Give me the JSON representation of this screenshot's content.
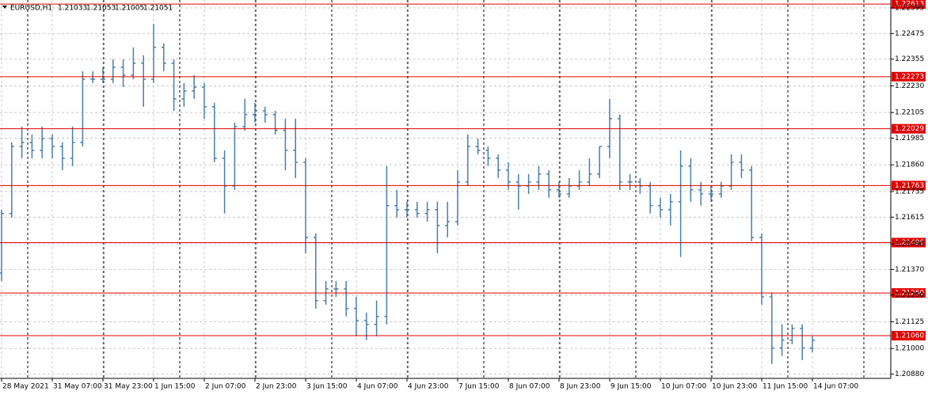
{
  "chart_data": {
    "type": "ohlc",
    "title": "EURUSD,H1",
    "info_values": [
      1.21033,
      1.21053,
      1.21005,
      1.21051
    ],
    "color": "#4a7ea8",
    "level_color": "#e00000",
    "grid": true,
    "ylim": [
      1.2086,
      1.22632
    ],
    "yticks": [
      1.22595,
      1.22475,
      1.22355,
      {
        "value": 1.2223,
        "label": "1.22230"
      },
      1.22105,
      1.21985,
      {
        "value": 1.2186,
        "label": "1.21860"
      },
      1.21735,
      1.21615,
      {
        "value": 1.2149,
        "label": "1.21490"
      },
      {
        "value": 1.2137,
        "label": "1.21370"
      },
      {
        "value": 1.2125,
        "label": "1.21250"
      },
      1.21125,
      {
        "value": 1.21,
        "label": "1.21000"
      },
      {
        "value": 1.2088,
        "label": "1.20880"
      }
    ],
    "levels": [
      1.22613,
      1.22273,
      1.22029,
      1.21763,
      1.21496,
      {
        "value": 1.2126,
        "label": "1.21260"
      },
      {
        "value": 1.2106,
        "label": "1.21060"
      }
    ],
    "categories": [
      "28 May 2021",
      null,
      null,
      null,
      null,
      "31 May 07:00",
      null,
      null,
      null,
      null,
      "31 May 23:00",
      null,
      null,
      null,
      null,
      "1 Jun 15:00",
      null,
      null,
      null,
      null,
      "2 Jun 07:00",
      null,
      null,
      null,
      null,
      "2 Jun 23:00",
      null,
      null,
      null,
      null,
      "3 Jun 15:00",
      null,
      null,
      null,
      null,
      "4 Jun 07:00",
      null,
      null,
      null,
      null,
      "4 Jun 23:00",
      null,
      null,
      null,
      null,
      "7 Jun 15:00",
      null,
      null,
      null,
      null,
      "8 Jun 07:00",
      null,
      null,
      null,
      null,
      "8 Jun 23:00",
      null,
      null,
      null,
      null,
      "9 Jun 15:00",
      null,
      null,
      null,
      null,
      "10 Jun 07:00",
      null,
      null,
      null,
      null,
      "10 Jun 23:00",
      null,
      null,
      null,
      null,
      "11 Jun 15:00",
      null,
      null,
      null,
      null,
      "14 Jun 07:00"
    ],
    "open": [
      1.21354,
      1.21632,
      1.21946,
      1.21965,
      1.21928,
      1.21983,
      1.21946,
      1.21891,
      1.21965,
      1.22261,
      1.22261,
      1.22261,
      1.22317,
      1.2228,
      1.22336,
      1.22261,
      1.2241,
      1.22336,
      1.22169,
      1.22206,
      1.22224,
      1.22132,
      1.21891,
      1.21761,
      1.22039,
      1.22095,
      1.22113,
      1.22095,
      1.22021,
      1.21928,
      1.21872,
      1.2152,
      1.21224,
      1.21279,
      1.21279,
      1.21187,
      1.21131,
      1.21113,
      1.2115,
      1.21669,
      1.2165,
      1.2165,
      1.21632,
      1.2165,
      1.21576,
      1.21594,
      1.2178,
      1.21946,
      1.21928,
      1.21891,
      1.21835,
      1.2178,
      1.21761,
      1.2178,
      1.21817,
      1.21743,
      1.21724,
      1.21761,
      1.2178,
      1.21817,
      1.21946,
      1.22076,
      1.2178,
      1.2178,
      1.21761,
      1.21669,
      1.2165,
      1.21687,
      1.21854,
      1.21743,
      1.21724,
      1.21724,
      1.21761,
      1.21872,
      1.21835,
      1.2152,
      1.21242,
      1.21002,
      1.21039,
      1.21094,
      1.21002
    ],
    "high": [
      1.2165,
      1.21965,
      1.22039,
      1.22002,
      1.22039,
      1.22002,
      1.21965,
      1.22039,
      1.22298,
      1.22298,
      1.22317,
      1.22354,
      1.22354,
      1.2241,
      1.22373,
      1.22521,
      1.22428,
      1.22354,
      1.22243,
      1.2228,
      1.22243,
      1.2215,
      1.21928,
      1.22058,
      1.22169,
      1.2215,
      1.22132,
      1.22113,
      1.22076,
      1.22076,
      1.21891,
      1.21539,
      1.21316,
      1.21316,
      1.21316,
      1.21242,
      1.21168,
      1.21224,
      1.21854,
      1.21743,
      1.21687,
      1.21687,
      1.21687,
      1.21687,
      1.21687,
      1.21835,
      1.22002,
      1.21983,
      1.21946,
      1.21909,
      1.21872,
      1.21817,
      1.21817,
      1.21854,
      1.21835,
      1.2178,
      1.21798,
      1.21835,
      1.21891,
      1.21946,
      1.22169,
      1.22095,
      1.21817,
      1.21798,
      1.2178,
      1.21706,
      1.21724,
      1.21928,
      1.21891,
      1.2178,
      1.21761,
      1.2178,
      1.21909,
      1.21909,
      1.21854,
      1.21539,
      1.21261,
      1.21113,
      1.21113,
      1.21113,
      1.21057
    ],
    "low": [
      1.21316,
      1.21613,
      1.21891,
      1.21891,
      1.21891,
      1.21891,
      1.21835,
      1.21854,
      1.21946,
      1.22243,
      1.22243,
      1.22243,
      1.22224,
      1.22261,
      1.22132,
      1.22243,
      1.22298,
      1.22113,
      1.22132,
      1.22169,
      1.22076,
      1.21872,
      1.21632,
      1.21743,
      1.22021,
      1.22058,
      1.22058,
      1.22002,
      1.21835,
      1.21798,
      1.21446,
      1.21187,
      1.21205,
      1.21242,
      1.2115,
      1.21057,
      1.21039,
      1.21057,
      1.21113,
      1.21613,
      1.21613,
      1.21613,
      1.21594,
      1.21446,
      1.2152,
      1.21576,
      1.21761,
      1.21909,
      1.21854,
      1.21798,
      1.21743,
      1.2165,
      1.21724,
      1.21743,
      1.21706,
      1.21706,
      1.21706,
      1.21743,
      1.21761,
      1.21798,
      1.21891,
      1.21743,
      1.21743,
      1.21724,
      1.21632,
      1.21613,
      1.21576,
      1.21428,
      1.21687,
      1.21669,
      1.21687,
      1.21706,
      1.21743,
      1.21798,
      1.21502,
      1.21205,
      1.20928,
      1.20965,
      1.2102,
      1.20946,
      1.20983
    ],
    "close": [
      1.21632,
      1.21946,
      1.21965,
      1.21928,
      1.21983,
      1.21946,
      1.21891,
      1.21965,
      1.22261,
      1.22261,
      1.22261,
      1.22317,
      1.2228,
      1.22336,
      1.22261,
      1.2241,
      1.22336,
      1.22169,
      1.22206,
      1.22224,
      1.22132,
      1.21891,
      1.21761,
      1.22039,
      1.22095,
      1.22113,
      1.22095,
      1.22021,
      1.21928,
      1.21872,
      1.2152,
      1.21224,
      1.21279,
      1.21279,
      1.21187,
      1.21131,
      1.21113,
      1.2115,
      1.21669,
      1.2165,
      1.2165,
      1.21632,
      1.2165,
      1.21576,
      1.21594,
      1.2178,
      1.21946,
      1.21928,
      1.21891,
      1.21835,
      1.2178,
      1.21761,
      1.2178,
      1.21817,
      1.21743,
      1.21724,
      1.21761,
      1.2178,
      1.21817,
      1.21946,
      1.22076,
      1.2178,
      1.2178,
      1.21761,
      1.21669,
      1.2165,
      1.21687,
      1.21854,
      1.21743,
      1.21724,
      1.21724,
      1.21761,
      1.21872,
      1.21835,
      1.2152,
      1.21242,
      1.21002,
      1.21039,
      1.21094,
      1.21002,
      1.21039
    ]
  }
}
